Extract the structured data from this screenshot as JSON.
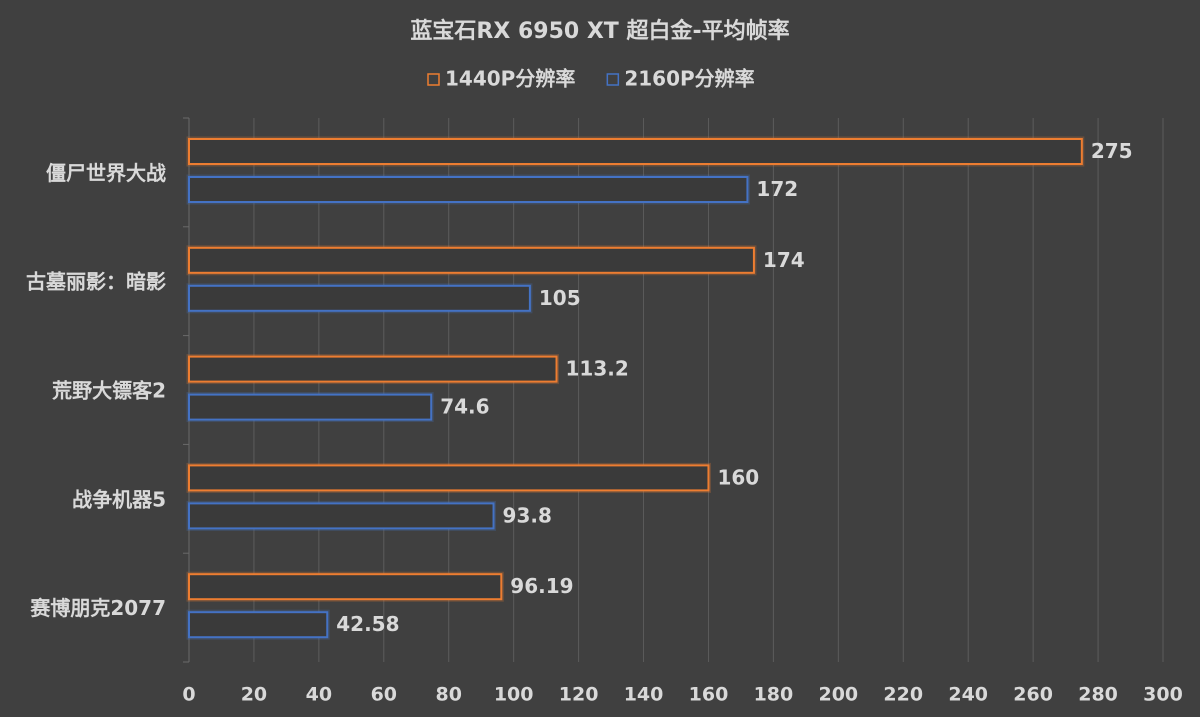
{
  "chart_data": {
    "type": "barh",
    "title": "蓝宝石RX 6950 XT 超白金-平均帧率",
    "categories": [
      "僵尸世界大战",
      "古墓丽影：暗影",
      "荒野大镖客2",
      "战争机器5",
      "赛博朋克2077"
    ],
    "series": [
      {
        "name": "1440P分辨率",
        "color": "#ed7d31",
        "values": [
          275,
          174,
          113.2,
          160,
          96.19
        ]
      },
      {
        "name": "2160P分辨率",
        "color": "#4472c4",
        "values": [
          172,
          105,
          74.6,
          93.8,
          42.58
        ]
      }
    ],
    "xlim": [
      0,
      300
    ],
    "xticks": [
      0,
      20,
      40,
      60,
      80,
      100,
      120,
      140,
      160,
      180,
      200,
      220,
      240,
      260,
      280,
      300
    ],
    "grid": true,
    "legend": "top"
  }
}
